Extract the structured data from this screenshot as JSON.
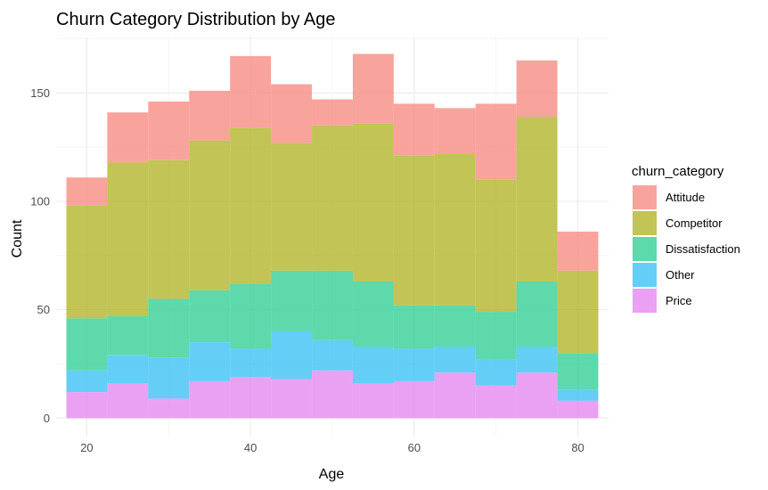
{
  "chart_data": {
    "type": "bar",
    "stacked": true,
    "title": "Churn Category Distribution by Age",
    "xlabel": "Age",
    "ylabel": "Count",
    "xlim": [
      16.25,
      83.75
    ],
    "ylim": [
      -8.5,
      176
    ],
    "x_ticks": [
      20,
      40,
      60,
      80
    ],
    "y_ticks": [
      0,
      50,
      100,
      150
    ],
    "grid": true,
    "legend": {
      "title": "churn_category",
      "position": "right"
    },
    "bins": [
      {
        "x0": 17.5,
        "x1": 22.5
      },
      {
        "x0": 22.5,
        "x1": 27.5
      },
      {
        "x0": 27.5,
        "x1": 32.5
      },
      {
        "x0": 32.5,
        "x1": 37.5
      },
      {
        "x0": 37.5,
        "x1": 42.5
      },
      {
        "x0": 42.5,
        "x1": 47.5
      },
      {
        "x0": 47.5,
        "x1": 52.5
      },
      {
        "x0": 52.5,
        "x1": 57.5
      },
      {
        "x0": 57.5,
        "x1": 62.5
      },
      {
        "x0": 62.5,
        "x1": 67.5
      },
      {
        "x0": 67.5,
        "x1": 72.5
      },
      {
        "x0": 72.5,
        "x1": 77.5
      },
      {
        "x0": 77.5,
        "x1": 82.5
      }
    ],
    "series": [
      {
        "name": "Price",
        "color": "#E68AF0",
        "values": [
          12,
          16,
          9,
          17,
          19,
          18,
          22,
          16,
          17,
          21,
          15,
          21,
          8
        ]
      },
      {
        "name": "Other",
        "color": "#3DC2F5",
        "values": [
          10,
          13,
          19,
          18,
          13,
          22,
          14,
          17,
          15,
          12,
          12,
          12,
          5
        ]
      },
      {
        "name": "Dissatisfaction",
        "color": "#35CF96",
        "values": [
          24,
          18,
          27,
          24,
          30,
          28,
          32,
          30,
          20,
          19,
          22,
          30,
          17
        ]
      },
      {
        "name": "Competitor",
        "color": "#B3B52A",
        "values": [
          52,
          71,
          64,
          69,
          72,
          59,
          67,
          73,
          69,
          70,
          61,
          76,
          38
        ]
      },
      {
        "name": "Attitude",
        "color": "#F88C84",
        "values": [
          13,
          23,
          27,
          23,
          33,
          27,
          12,
          32,
          24,
          21,
          35,
          26,
          18
        ]
      }
    ]
  }
}
